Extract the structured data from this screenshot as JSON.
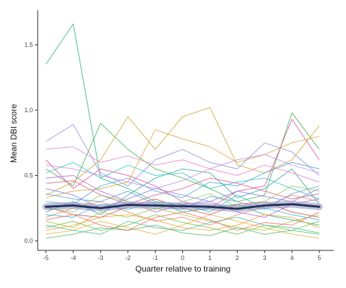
{
  "chart_data": {
    "type": "line",
    "title": "",
    "xlabel": "Quarter relative to training",
    "ylabel": "Mean DBI score",
    "x": [
      -5,
      -4,
      -3,
      -2,
      -1,
      0,
      1,
      2,
      3,
      4,
      5
    ],
    "x_ticks": [
      "-5",
      "-4",
      "-3",
      "-2",
      "-1",
      "0",
      "1",
      "2",
      "3",
      "4",
      "5"
    ],
    "y_ticks": [
      "0.0",
      "0.5",
      "1.0",
      "1.5"
    ],
    "xlim": [
      -5.2,
      5.2
    ],
    "ylim": [
      -0.05,
      1.72
    ],
    "grid": false,
    "legend": "none",
    "series": [
      {
        "color": "#1fb57a",
        "values": [
          1.35,
          1.66,
          0.48,
          0.4,
          0.3,
          0.22,
          0.25,
          0.28,
          0.2,
          0.16,
          0.12
        ]
      },
      {
        "color": "#3fb34f",
        "values": [
          0.55,
          0.42,
          0.9,
          0.7,
          0.55,
          0.48,
          0.4,
          0.3,
          0.35,
          0.98,
          0.7
        ]
      },
      {
        "color": "#c9a227",
        "values": [
          0.35,
          0.45,
          0.62,
          0.95,
          0.7,
          0.95,
          1.02,
          0.58,
          0.52,
          0.62,
          0.88
        ]
      },
      {
        "color": "#8a8fd8",
        "values": [
          0.76,
          0.89,
          0.52,
          0.42,
          0.62,
          0.7,
          0.6,
          0.55,
          0.75,
          0.68,
          0.5
        ]
      },
      {
        "color": "#e04b9c",
        "values": [
          0.62,
          0.4,
          0.55,
          0.5,
          0.42,
          0.3,
          0.25,
          0.38,
          0.42,
          0.93,
          0.62
        ]
      },
      {
        "color": "#2fa7a1",
        "values": [
          0.22,
          0.3,
          0.2,
          0.35,
          0.48,
          0.55,
          0.52,
          0.33,
          0.4,
          0.55,
          0.28
        ]
      },
      {
        "color": "#e8856b",
        "values": [
          0.18,
          0.25,
          0.3,
          0.22,
          0.15,
          0.18,
          0.12,
          0.2,
          0.26,
          0.35,
          0.3
        ]
      },
      {
        "color": "#b066d6",
        "values": [
          0.48,
          0.5,
          0.38,
          0.3,
          0.22,
          0.28,
          0.3,
          0.22,
          0.18,
          0.28,
          0.32
        ]
      },
      {
        "color": "#6cc24a",
        "values": [
          0.1,
          0.15,
          0.08,
          0.12,
          0.2,
          0.14,
          0.1,
          0.05,
          0.12,
          0.08,
          0.15
        ]
      },
      {
        "color": "#45a0e0",
        "values": [
          0.3,
          0.28,
          0.42,
          0.48,
          0.38,
          0.33,
          0.45,
          0.42,
          0.52,
          0.6,
          0.55
        ]
      },
      {
        "color": "#e7b13a",
        "values": [
          0.05,
          0.08,
          0.15,
          0.1,
          0.05,
          0.12,
          0.2,
          0.15,
          0.1,
          0.05,
          0.02
        ]
      },
      {
        "color": "#d24f4f",
        "values": [
          0.26,
          0.2,
          0.18,
          0.26,
          0.32,
          0.25,
          0.2,
          0.28,
          0.3,
          0.22,
          0.18
        ]
      },
      {
        "color": "#30c4c4",
        "values": [
          0.52,
          0.6,
          0.48,
          0.58,
          0.5,
          0.52,
          0.4,
          0.45,
          0.48,
          0.4,
          0.32
        ]
      },
      {
        "color": "#a3c43a",
        "values": [
          0.15,
          0.1,
          0.22,
          0.18,
          0.25,
          0.2,
          0.15,
          0.1,
          0.08,
          0.15,
          0.2
        ]
      },
      {
        "color": "#f07ac8",
        "values": [
          0.7,
          0.72,
          0.6,
          0.65,
          0.58,
          0.62,
          0.55,
          0.5,
          0.58,
          0.52,
          0.45
        ]
      },
      {
        "color": "#7c7cf0",
        "values": [
          0.4,
          0.35,
          0.25,
          0.32,
          0.4,
          0.35,
          0.3,
          0.38,
          0.34,
          0.3,
          0.4
        ]
      },
      {
        "color": "#59b86d",
        "values": [
          0.02,
          0.05,
          0.1,
          0.08,
          0.12,
          0.06,
          0.04,
          0.1,
          0.05,
          0.08,
          0.05
        ]
      },
      {
        "color": "#d9a13b",
        "values": [
          0.33,
          0.38,
          0.4,
          0.45,
          0.85,
          0.78,
          0.72,
          0.6,
          0.66,
          0.75,
          0.8
        ]
      },
      {
        "color": "#36b0d8",
        "values": [
          0.2,
          0.18,
          0.28,
          0.24,
          0.3,
          0.28,
          0.22,
          0.35,
          0.25,
          0.2,
          0.16
        ]
      },
      {
        "color": "#e05c8a",
        "values": [
          0.44,
          0.46,
          0.35,
          0.28,
          0.35,
          0.4,
          0.48,
          0.44,
          0.38,
          0.32,
          0.36
        ]
      },
      {
        "color": "#4dbb9b",
        "values": [
          0.12,
          0.08,
          0.05,
          0.15,
          0.1,
          0.08,
          0.14,
          0.18,
          0.12,
          0.1,
          0.06
        ]
      },
      {
        "color": "#c58ae0",
        "values": [
          0.58,
          0.55,
          0.5,
          0.45,
          0.4,
          0.46,
          0.55,
          0.62,
          0.66,
          0.58,
          0.52
        ]
      },
      {
        "color": "#f2a03d",
        "values": [
          0.08,
          0.12,
          0.18,
          0.2,
          0.16,
          0.1,
          0.08,
          0.12,
          0.2,
          0.18,
          0.1
        ]
      },
      {
        "color": "#5a9be6",
        "values": [
          0.36,
          0.32,
          0.3,
          0.38,
          0.28,
          0.24,
          0.34,
          0.3,
          0.24,
          0.36,
          0.42
        ]
      },
      {
        "color": "#90c850",
        "values": [
          0.25,
          0.22,
          0.35,
          0.3,
          0.24,
          0.3,
          0.36,
          0.26,
          0.3,
          0.42,
          0.38
        ]
      },
      {
        "color": "#ef6e6e",
        "values": [
          0.16,
          0.2,
          0.12,
          0.08,
          0.18,
          0.22,
          0.16,
          0.08,
          0.14,
          0.12,
          0.22
        ]
      }
    ],
    "mean_series": {
      "color": "#22305e",
      "values": [
        0.26,
        0.27,
        0.25,
        0.275,
        0.27,
        0.265,
        0.26,
        0.245,
        0.27,
        0.28,
        0.26
      ]
    }
  }
}
